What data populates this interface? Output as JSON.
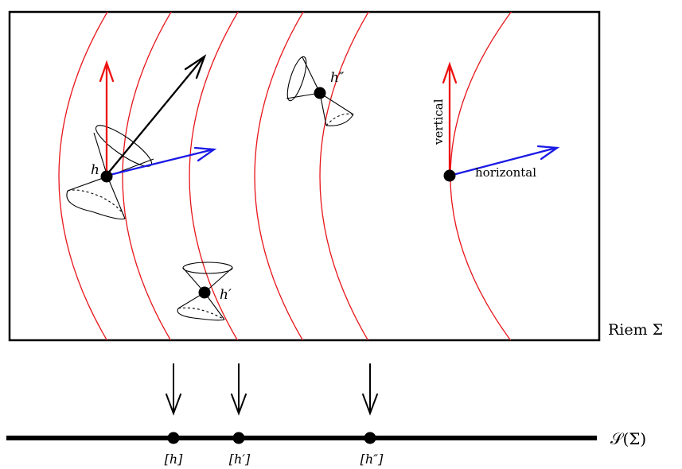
{
  "labels": {
    "superspace_label": "Riem Σ",
    "quotient_label": "𝒮(Σ)",
    "vertical": "vertical",
    "horizontal": "horizontal"
  },
  "points": {
    "h": {
      "name": "h",
      "prime": "",
      "class_label": "[h]"
    },
    "hp": {
      "name": "h",
      "prime": "′",
      "class_label": "[h′]"
    },
    "hpp": {
      "name": "h",
      "prime": "″",
      "class_label": "[h″]"
    }
  },
  "colors": {
    "orbit_curves": "#e8161b",
    "vertical_arrow": "#ee1111",
    "horizontal_arrow": "#1a1ae6",
    "generic_vector": "#000000",
    "outline": "#000000"
  }
}
